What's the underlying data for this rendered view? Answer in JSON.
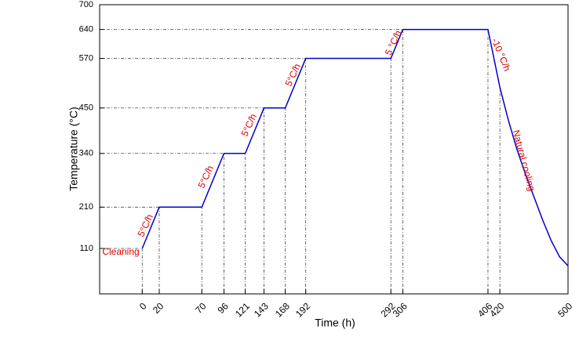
{
  "chart_data": {
    "type": "line",
    "x_label": "Time (h)",
    "y_label": "Temperature (°C)",
    "x": [
      0,
      20,
      70,
      96,
      121,
      143,
      168,
      192,
      292,
      306,
      406,
      420,
      430,
      440,
      450,
      460,
      470,
      480,
      490,
      500
    ],
    "series": [
      {
        "color": "#0000cc",
        "values": [
          110,
          210,
          210,
          340,
          340,
          450,
          450,
          570,
          570,
          640,
          640,
          500,
          420,
          350,
          290,
          235,
          180,
          130,
          90,
          68
        ]
      }
    ],
    "xlim": [
      -50,
      500
    ],
    "ylim": [
      0,
      700
    ],
    "xticks": [
      0,
      20,
      70,
      96,
      121,
      143,
      168,
      192,
      292,
      306,
      406,
      420,
      500
    ],
    "yticks": [
      110,
      210,
      340,
      450,
      570,
      640,
      700
    ],
    "annotations": [
      "Cleaning",
      "5°C/h",
      "5°C/h",
      "5°C/h",
      "5°C/h",
      "5 °C/h",
      "-10 °C/h",
      "Natural cooling"
    ],
    "annotation_color": "#dd0000"
  }
}
